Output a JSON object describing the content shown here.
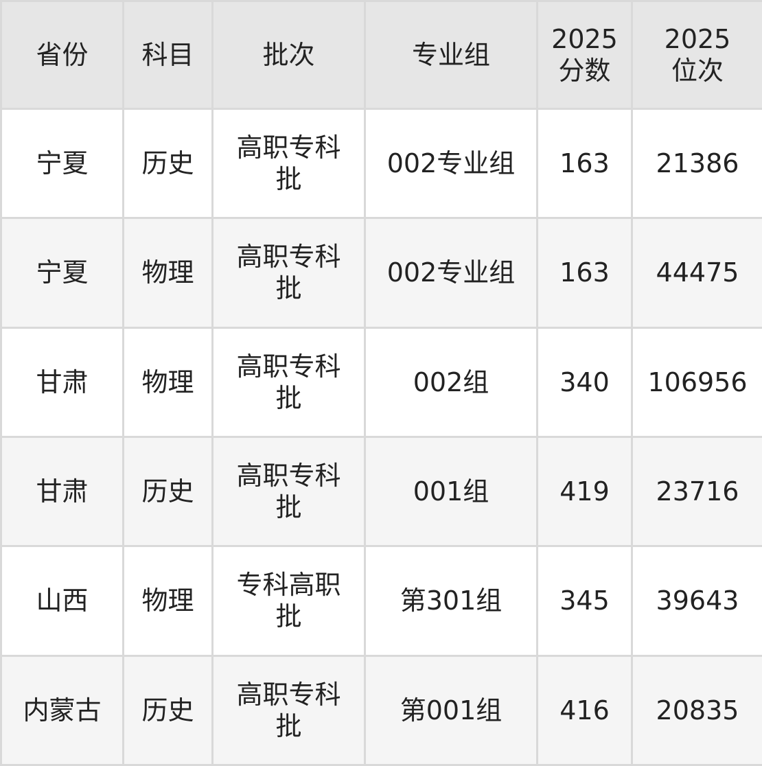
{
  "headers": [
    "省份",
    "科目",
    "批次",
    "专业组",
    "2025分数",
    "2025位次"
  ],
  "header_lines": [
    [
      "省份"
    ],
    [
      "科目"
    ],
    [
      "批次"
    ],
    [
      "专业组"
    ],
    [
      "2025",
      "分数"
    ],
    [
      "2025",
      "位次"
    ]
  ],
  "rows": [
    [
      "宁夏",
      "历史",
      "高职专科批",
      "002专业组",
      "163",
      "21386"
    ],
    [
      "宁夏",
      "物理",
      "高职专科批",
      "002专业组",
      "163",
      "44475"
    ],
    [
      "甘肃",
      "物理",
      "高职专科批",
      "002组",
      "340",
      "106956"
    ],
    [
      "甘肃",
      "历史",
      "高职专科批",
      "001组",
      "419",
      "23716"
    ],
    [
      "山西",
      "物理",
      "专科高职批",
      "第301组",
      "345",
      "39643"
    ],
    [
      "内蒙古",
      "历史",
      "高职专科批",
      "第001组",
      "416",
      "20835"
    ]
  ],
  "colors": {
    "header_bg": "#e6e6e6",
    "row_alt_bg": "#f5f5f5",
    "border": "#d9d9d9",
    "text": "#222222"
  }
}
